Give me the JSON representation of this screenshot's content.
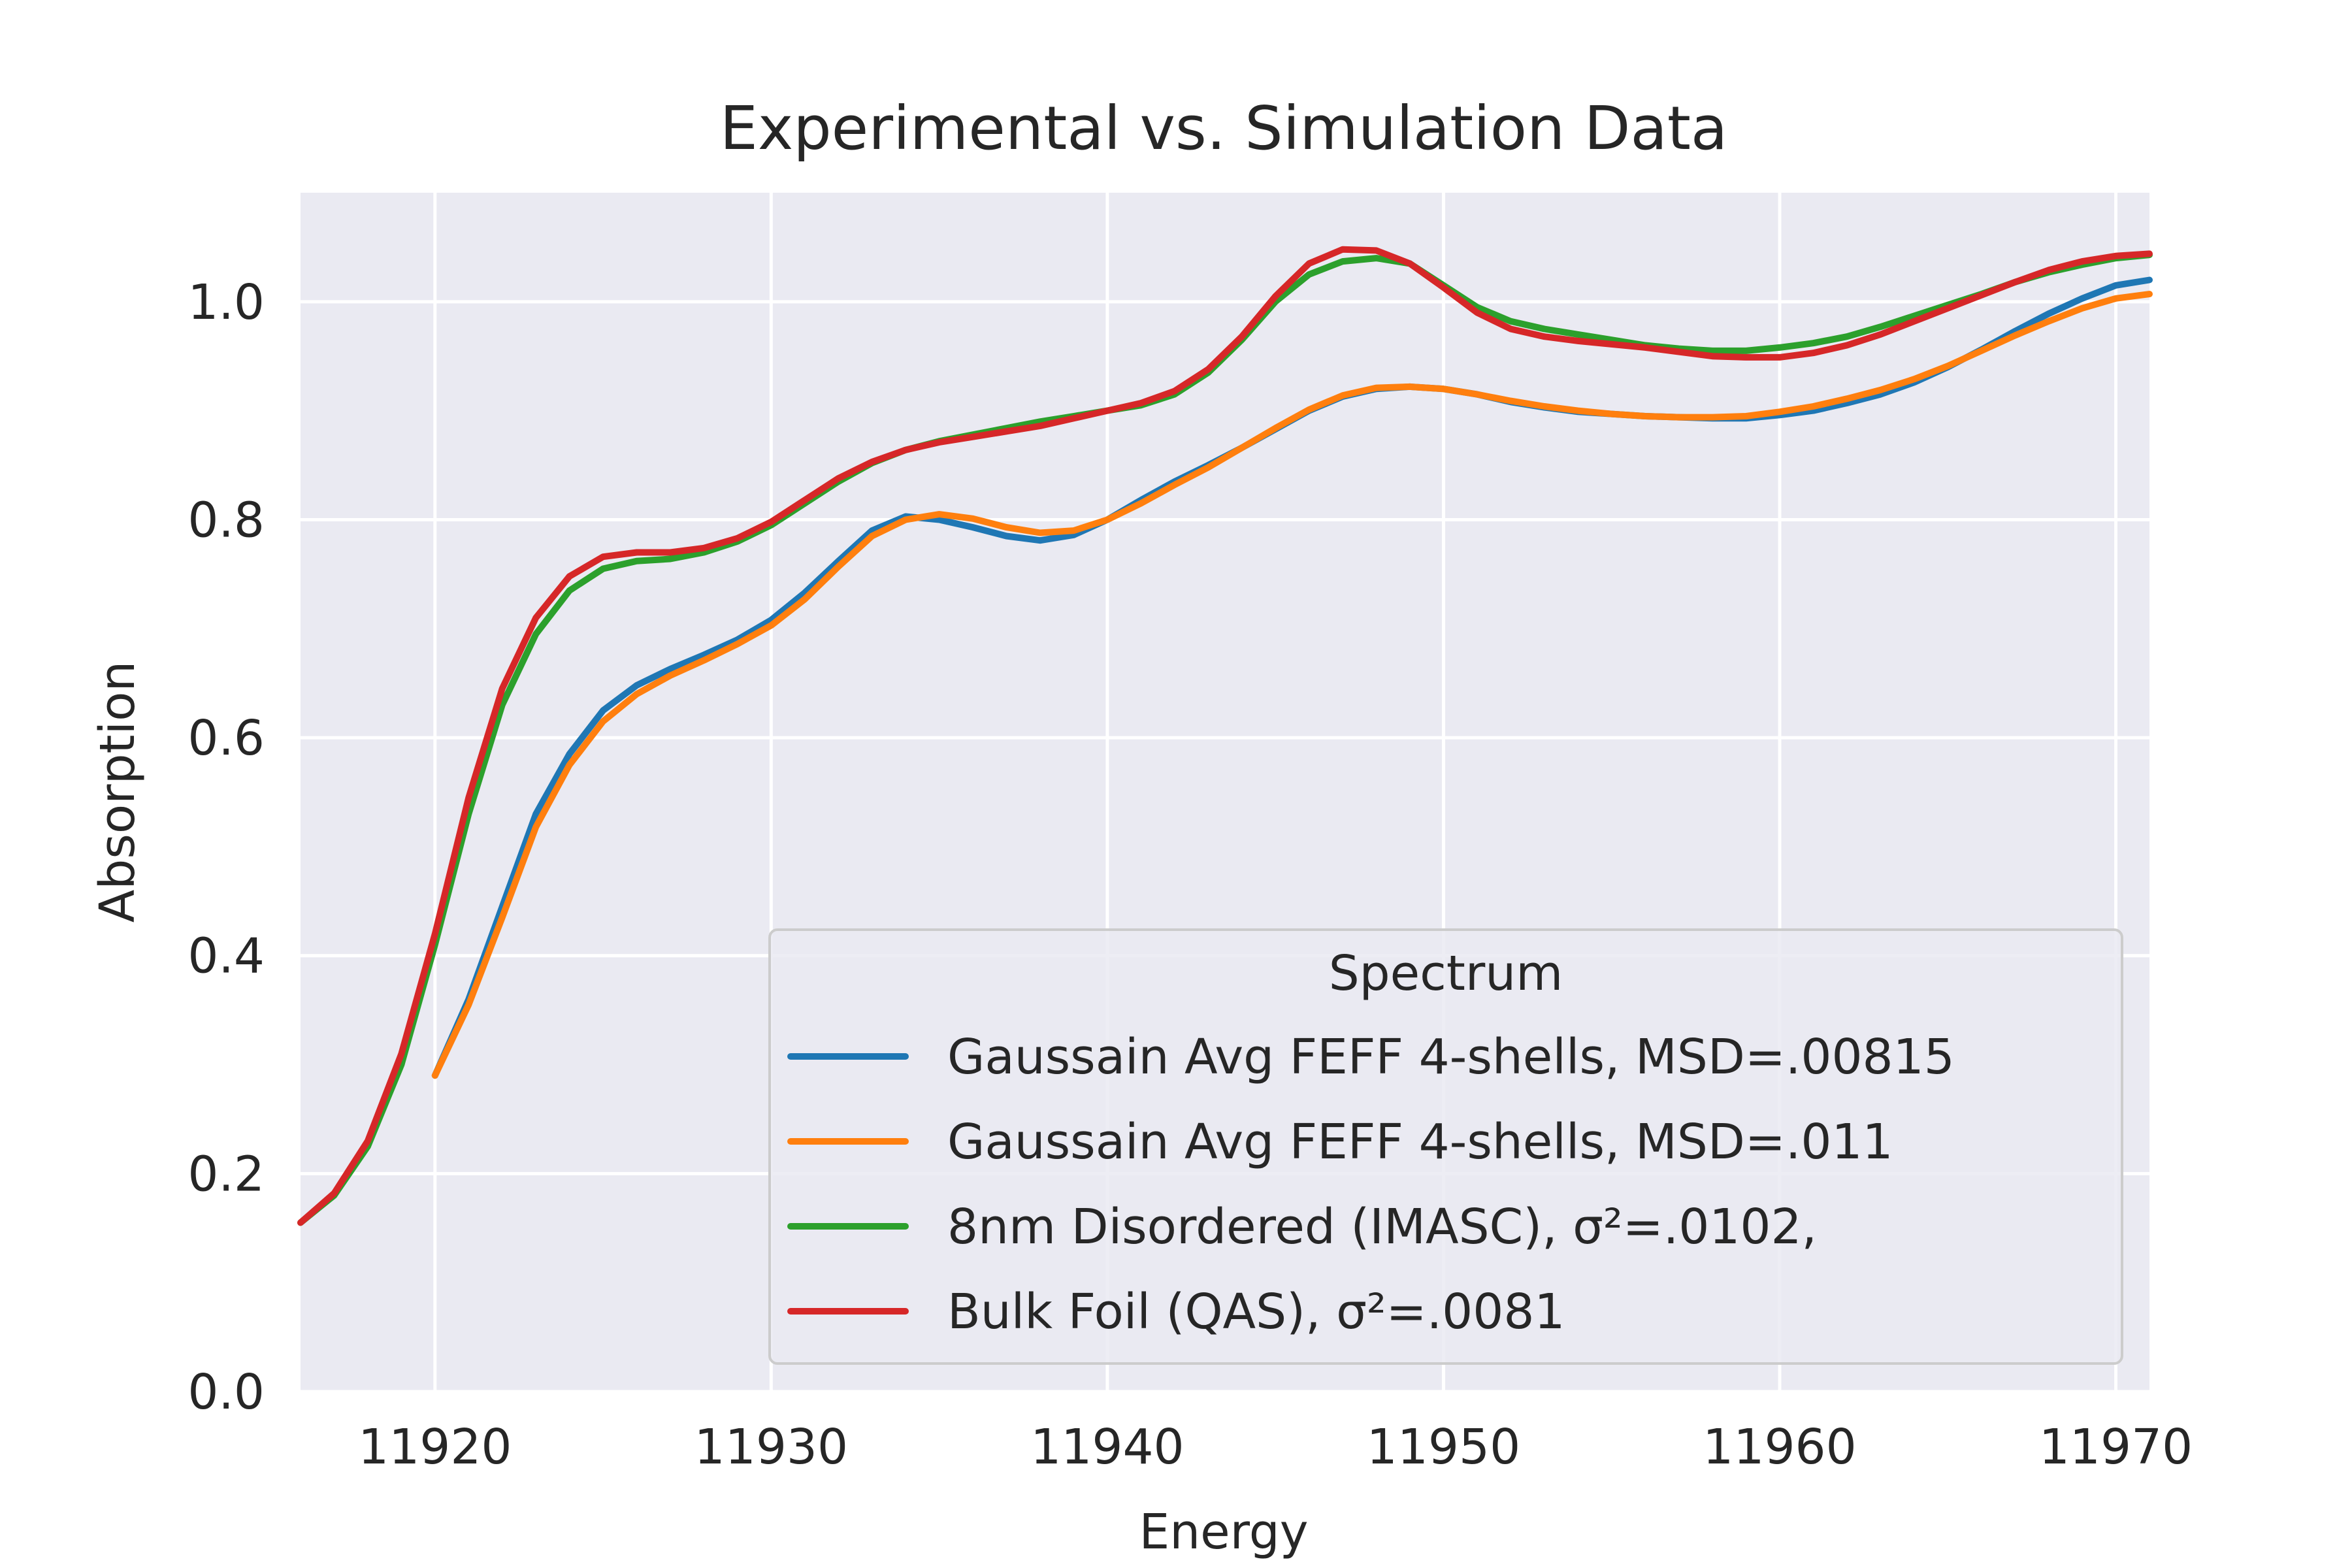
{
  "chart_data": {
    "type": "line",
    "title": "Experimental vs. Simulation Data",
    "xlabel": "Energy",
    "ylabel": "Absorption",
    "xlim": [
      11916,
      11971
    ],
    "ylim": [
      0,
      1.1
    ],
    "xticks": [
      11920,
      11930,
      11940,
      11950,
      11960,
      11970
    ],
    "xtick_labels": [
      "11920",
      "11930",
      "11940",
      "11950",
      "11960",
      "11970"
    ],
    "yticks": [
      0,
      0.2,
      0.4,
      0.6,
      0.8,
      1.0
    ],
    "ytick_labels": [
      "0.0",
      "0.2",
      "0.4",
      "0.6",
      "0.8",
      "1.0"
    ],
    "grid": true,
    "legend": {
      "title": "Spectrum",
      "placement": "lower right"
    },
    "series": [
      {
        "name": "Gaussain Avg FEFF 4-shells, MSD=.00815",
        "color": "#1f77b4",
        "x": [
          11920,
          11921,
          11922,
          11923,
          11924,
          11925,
          11926,
          11927,
          11928,
          11929,
          11930,
          11931,
          11932,
          11933,
          11934,
          11935,
          11936,
          11937,
          11938,
          11939,
          11940,
          11941,
          11942,
          11943,
          11944,
          11945,
          11946,
          11947,
          11948,
          11949,
          11950,
          11951,
          11952,
          11953,
          11954,
          11955,
          11956,
          11957,
          11958,
          11959,
          11960,
          11961,
          11962,
          11963,
          11964,
          11965,
          11966,
          11967,
          11968,
          11969,
          11970,
          11971
        ],
        "y": [
          0.29,
          0.36,
          0.445,
          0.53,
          0.585,
          0.625,
          0.648,
          0.663,
          0.676,
          0.69,
          0.708,
          0.733,
          0.762,
          0.79,
          0.803,
          0.8,
          0.793,
          0.785,
          0.781,
          0.786,
          0.8,
          0.818,
          0.835,
          0.85,
          0.866,
          0.883,
          0.9,
          0.913,
          0.92,
          0.922,
          0.92,
          0.915,
          0.908,
          0.903,
          0.899,
          0.897,
          0.895,
          0.894,
          0.893,
          0.893,
          0.896,
          0.9,
          0.907,
          0.915,
          0.926,
          0.94,
          0.956,
          0.973,
          0.989,
          1.003,
          1.015,
          1.02
        ]
      },
      {
        "name": "Gaussain Avg FEFF 4-shells, MSD=.011",
        "color": "#ff7f0e",
        "x": [
          11920,
          11921,
          11922,
          11923,
          11924,
          11925,
          11926,
          11927,
          11928,
          11929,
          11930,
          11931,
          11932,
          11933,
          11934,
          11935,
          11936,
          11937,
          11938,
          11939,
          11940,
          11941,
          11942,
          11943,
          11944,
          11945,
          11946,
          11947,
          11948,
          11949,
          11950,
          11951,
          11952,
          11953,
          11954,
          11955,
          11956,
          11957,
          11958,
          11959,
          11960,
          11961,
          11962,
          11963,
          11964,
          11965,
          11966,
          11967,
          11968,
          11969,
          11970,
          11971
        ],
        "y": [
          0.29,
          0.355,
          0.435,
          0.518,
          0.575,
          0.615,
          0.64,
          0.657,
          0.671,
          0.686,
          0.703,
          0.727,
          0.757,
          0.785,
          0.8,
          0.805,
          0.801,
          0.793,
          0.788,
          0.79,
          0.8,
          0.815,
          0.832,
          0.848,
          0.866,
          0.884,
          0.901,
          0.914,
          0.921,
          0.922,
          0.92,
          0.915,
          0.909,
          0.904,
          0.9,
          0.897,
          0.895,
          0.894,
          0.894,
          0.895,
          0.899,
          0.904,
          0.911,
          0.919,
          0.929,
          0.941,
          0.955,
          0.969,
          0.982,
          0.994,
          1.003,
          1.007
        ]
      },
      {
        "name": "8nm Disordered (IMASC), σ²=.0102,",
        "color": "#2ca02c",
        "x": [
          11916,
          11917,
          11918,
          11919,
          11920,
          11921,
          11922,
          11923,
          11924,
          11925,
          11926,
          11927,
          11928,
          11929,
          11930,
          11931,
          11932,
          11933,
          11934,
          11935,
          11936,
          11937,
          11938,
          11939,
          11940,
          11941,
          11942,
          11943,
          11944,
          11945,
          11946,
          11947,
          11948,
          11949,
          11950,
          11951,
          11952,
          11953,
          11954,
          11955,
          11956,
          11957,
          11958,
          11959,
          11960,
          11961,
          11962,
          11963,
          11964,
          11965,
          11966,
          11967,
          11968,
          11969,
          11970,
          11971
        ],
        "y": [
          0.155,
          0.18,
          0.225,
          0.3,
          0.41,
          0.53,
          0.63,
          0.695,
          0.735,
          0.755,
          0.762,
          0.764,
          0.77,
          0.78,
          0.795,
          0.815,
          0.835,
          0.852,
          0.864,
          0.872,
          0.878,
          0.884,
          0.89,
          0.895,
          0.9,
          0.905,
          0.915,
          0.935,
          0.965,
          1.0,
          1.025,
          1.037,
          1.04,
          1.035,
          1.015,
          0.995,
          0.982,
          0.975,
          0.97,
          0.965,
          0.96,
          0.957,
          0.955,
          0.955,
          0.958,
          0.962,
          0.968,
          0.977,
          0.987,
          0.997,
          1.007,
          1.018,
          1.027,
          1.034,
          1.04,
          1.043
        ]
      },
      {
        "name": "Bulk Foil (QAS), σ²=.0081",
        "color": "#d62728",
        "x": [
          11916,
          11917,
          11918,
          11919,
          11920,
          11921,
          11922,
          11923,
          11924,
          11925,
          11926,
          11927,
          11928,
          11929,
          11930,
          11931,
          11932,
          11933,
          11934,
          11935,
          11936,
          11937,
          11938,
          11939,
          11940,
          11941,
          11942,
          11943,
          11944,
          11945,
          11946,
          11947,
          11948,
          11949,
          11950,
          11951,
          11952,
          11953,
          11954,
          11955,
          11956,
          11957,
          11958,
          11959,
          11960,
          11961,
          11962,
          11963,
          11964,
          11965,
          11966,
          11967,
          11968,
          11969,
          11970,
          11971
        ],
        "y": [
          0.155,
          0.182,
          0.23,
          0.31,
          0.42,
          0.545,
          0.645,
          0.71,
          0.748,
          0.766,
          0.77,
          0.77,
          0.774,
          0.783,
          0.798,
          0.818,
          0.838,
          0.853,
          0.864,
          0.871,
          0.876,
          0.881,
          0.886,
          0.893,
          0.9,
          0.907,
          0.918,
          0.938,
          0.968,
          1.005,
          1.035,
          1.048,
          1.047,
          1.035,
          1.013,
          0.99,
          0.975,
          0.968,
          0.964,
          0.961,
          0.958,
          0.954,
          0.95,
          0.949,
          0.949,
          0.953,
          0.96,
          0.97,
          0.982,
          0.994,
          1.006,
          1.018,
          1.029,
          1.037,
          1.042,
          1.044
        ]
      }
    ]
  }
}
